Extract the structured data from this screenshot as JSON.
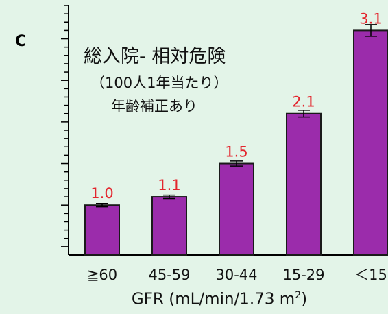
{
  "panel_label": "C",
  "chart_data": {
    "type": "bar",
    "title": "総入院- 相対危険",
    "subtitle_line1": "（100人1年当たり）",
    "subtitle_line2": "年齢補正あり",
    "categories": [
      "≧60",
      "45-59",
      "30-44",
      "15-29",
      "＜15"
    ],
    "values": [
      1.0,
      1.1,
      1.5,
      2.1,
      3.1
    ],
    "value_labels": [
      "1.0",
      "1.1",
      "1.5",
      "2.1",
      "3.1"
    ],
    "error": [
      0.02,
      0.02,
      0.03,
      0.04,
      0.07
    ],
    "xlabel_text": "GFR (mL/min/1.73 m",
    "xlabel_sup": "2",
    "xlabel_suffix": ")",
    "ylabel": "",
    "ylim": [
      0.4,
      3.4
    ],
    "y_minor_step": 0.1,
    "y_major_step": 0.5,
    "grid": false,
    "colors": {
      "bar": "#9b2cab",
      "bar_edge": "#1a1a1a",
      "value_label": "#e3262e",
      "axis": "#000000",
      "background": "#e3f4e8"
    }
  }
}
